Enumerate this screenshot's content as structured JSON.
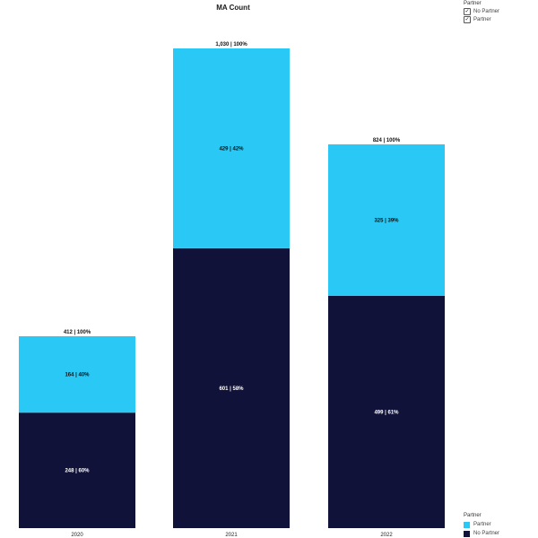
{
  "chart_data": {
    "type": "bar",
    "stacked": true,
    "title": "MA Count",
    "xlabel": "",
    "ylabel": "",
    "categories": [
      "2020",
      "2021",
      "2022"
    ],
    "series": [
      {
        "name": "No Partner",
        "values": [
          248,
          601,
          499
        ],
        "labels": [
          "248 | 60%",
          "601 | 58%",
          "499 | 61%"
        ],
        "color": "#111239",
        "label_color": "#ffffff"
      },
      {
        "name": "Partner",
        "values": [
          164,
          429,
          325
        ],
        "labels": [
          "164 | 40%",
          "429 | 42%",
          "325 | 39%"
        ],
        "color": "#29c8f5",
        "label_color": "#111111"
      }
    ],
    "totals": [
      412,
      1030,
      824
    ],
    "total_labels": [
      "412 | 100%",
      "1,030 | 100%",
      "824 | 100%"
    ],
    "ylim": [
      0,
      1030
    ],
    "grid": false,
    "legend_placement": "bottom-right"
  },
  "filter": {
    "title": "Partner",
    "items": [
      {
        "label": "No Partner",
        "checked": true
      },
      {
        "label": "Partner",
        "checked": true
      }
    ]
  },
  "legend": {
    "title": "Partner",
    "items": [
      {
        "label": "Partner",
        "color": "#29c8f5"
      },
      {
        "label": "No Partner",
        "color": "#111239"
      }
    ]
  }
}
